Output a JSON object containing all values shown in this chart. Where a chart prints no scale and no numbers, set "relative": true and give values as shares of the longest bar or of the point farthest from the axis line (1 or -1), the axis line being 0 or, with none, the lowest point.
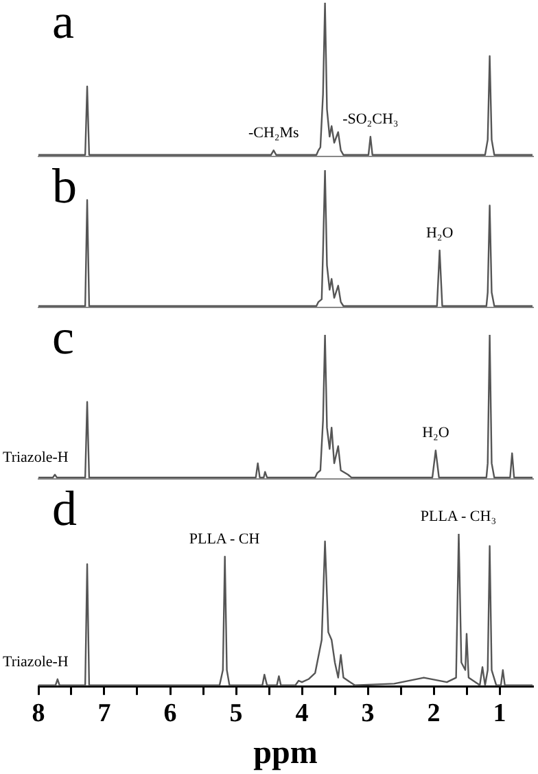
{
  "chart_data": [
    {
      "type": "line",
      "title": "a",
      "relative": true,
      "xlim": [
        8,
        0.5
      ],
      "tick_labels": false,
      "grid": false,
      "legend": false,
      "marker": "none",
      "series": [
        {
          "color": "#555555",
          "x": [
            8,
            7.29,
            7.26,
            7.23,
            4.47,
            4.43,
            4.39,
            3.78,
            3.75,
            3.72,
            3.68,
            3.65,
            3.62,
            3.58,
            3.55,
            3.51,
            3.45,
            3.41,
            3.37,
            2.99,
            2.96,
            2.93,
            1.22,
            1.18,
            1.15,
            1.12,
            1.08,
            0.5
          ],
          "values": [
            0,
            0,
            0.45,
            0,
            0,
            0.03,
            0,
            0,
            0.03,
            0.05,
            0.4,
            1,
            0.3,
            0.12,
            0.19,
            0.08,
            0.15,
            0.03,
            0,
            0,
            0.12,
            0,
            0,
            0.1,
            0.65,
            0.1,
            0,
            0
          ]
        }
      ],
      "annotations": [
        {
          "text": "-CH₂Ms",
          "x": 4.43,
          "y": 0.03
        },
        {
          "text": "-SO₂CH₃",
          "x": 2.96,
          "y": 0.12
        }
      ]
    },
    {
      "type": "line",
      "title": "b",
      "relative": true,
      "xlim": [
        8,
        0.5
      ],
      "tick_labels": false,
      "grid": false,
      "legend": false,
      "marker": "none",
      "series": [
        {
          "color": "#555555",
          "x": [
            8,
            7.29,
            7.26,
            7.23,
            3.78,
            3.75,
            3.7,
            3.68,
            3.65,
            3.62,
            3.58,
            3.55,
            3.51,
            3.45,
            3.41,
            3.37,
            1.95,
            1.91,
            1.87,
            1.2,
            1.18,
            1.15,
            1.12,
            1.08,
            0.5
          ],
          "values": [
            0,
            0,
            0.78,
            0,
            0,
            0.03,
            0.05,
            0.4,
            1,
            0.3,
            0.12,
            0.2,
            0.06,
            0.15,
            0.03,
            0,
            0,
            0.41,
            0,
            0,
            0.1,
            0.74,
            0.1,
            0,
            0
          ]
        }
      ],
      "annotations": [
        {
          "text": "H₂O",
          "x": 1.91,
          "y": 0.41
        }
      ]
    },
    {
      "type": "line",
      "title": "c",
      "relative": true,
      "xlim": [
        8,
        0.5
      ],
      "tick_labels": false,
      "grid": false,
      "legend": false,
      "marker": "none",
      "series": [
        {
          "color": "#555555",
          "x": [
            8,
            7.78,
            7.75,
            7.72,
            7.29,
            7.26,
            7.23,
            4.7,
            4.67,
            4.64,
            4.58,
            4.56,
            4.53,
            3.8,
            3.77,
            3.72,
            3.68,
            3.65,
            3.62,
            3.58,
            3.55,
            3.51,
            3.45,
            3.41,
            3.3,
            3.25,
            2.02,
            1.97,
            1.92,
            1.2,
            1.18,
            1.15,
            1.12,
            1.08,
            0.84,
            0.81,
            0.78,
            0.5
          ],
          "values": [
            0,
            0,
            0.02,
            0,
            0,
            0.53,
            0,
            0,
            0.1,
            0,
            0,
            0.04,
            0,
            0,
            0.03,
            0.05,
            0.4,
            1,
            0.35,
            0.2,
            0.35,
            0.1,
            0.22,
            0.05,
            0.02,
            0,
            0,
            0.19,
            0,
            0,
            0.1,
            1,
            0.1,
            0,
            0,
            0.17,
            0,
            0
          ]
        }
      ],
      "annotations": [
        {
          "text": "Triazole-H",
          "x": 7.75,
          "y": 0.02
        },
        {
          "text": "H₂O",
          "x": 1.97,
          "y": 0.19
        }
      ]
    },
    {
      "type": "line",
      "title": "d",
      "relative": true,
      "xlim": [
        8,
        0.5
      ],
      "tick_labels": "x",
      "grid": false,
      "legend": false,
      "marker": "none",
      "xlabel": "ppm",
      "xticks": [
        8,
        {
          "value": 7.5,
          "label": null
        },
        7,
        {
          "value": 6.5,
          "label": null
        },
        6,
        {
          "value": 5.5,
          "label": null
        },
        5,
        {
          "value": 4.5,
          "label": null
        },
        4,
        {
          "value": 3.5,
          "label": null
        },
        3,
        {
          "value": 2.5,
          "label": null
        },
        2,
        {
          "value": 1.5,
          "label": null
        },
        1
      ],
      "series": [
        {
          "color": "#555555",
          "x": [
            8,
            7.74,
            7.71,
            7.68,
            7.29,
            7.26,
            7.23,
            5.25,
            5.2,
            5.17,
            5.14,
            5.1,
            4.6,
            4.57,
            4.53,
            4.38,
            4.35,
            4.32,
            4.1,
            4.05,
            4,
            3.9,
            3.8,
            3.7,
            3.65,
            3.6,
            3.55,
            3.5,
            3.45,
            3.41,
            3.37,
            3.2,
            2.6,
            2.15,
            1.8,
            1.66,
            1.62,
            1.58,
            1.52,
            1.5,
            1.47,
            1.3,
            1.26,
            1.22,
            1.18,
            1.15,
            1.12,
            1.05,
            0.98,
            0.95,
            0.92,
            0.5
          ],
          "values": [
            0,
            0,
            0.04,
            0,
            0,
            0.8,
            0,
            0,
            0.1,
            0.85,
            0.1,
            0,
            0,
            0.07,
            0,
            0,
            0.06,
            0,
            0,
            0.03,
            0.02,
            0.04,
            0.08,
            0.3,
            0.95,
            0.35,
            0.3,
            0.15,
            0.05,
            0.2,
            0.05,
            0,
            0.01,
            0.05,
            0.02,
            0.05,
            1,
            0.15,
            0.1,
            0.34,
            0.05,
            0,
            0.12,
            0,
            0.1,
            0.92,
            0.1,
            0,
            0,
            0.1,
            0,
            0
          ]
        }
      ],
      "annotations": [
        {
          "text": "Triazole-H",
          "x": 7.71,
          "y": 0.04
        },
        {
          "text": "PLLA - CH",
          "x": 5.17,
          "y": 0.85
        },
        {
          "text": "PLLA - CH₃",
          "x": 1.62,
          "y": 1
        }
      ]
    }
  ]
}
